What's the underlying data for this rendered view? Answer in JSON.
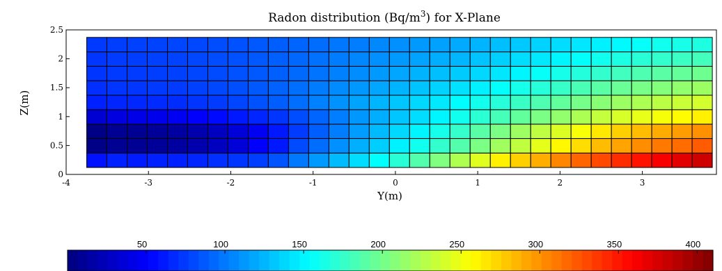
{
  "chart_data": {
    "type": "heatmap",
    "title": "Radon distribution (Bq/m3) for X-Plane",
    "title_parts": {
      "prefix": "Radon distribution (Bq/m",
      "superscript": "3",
      "suffix": ") for X-Plane"
    },
    "xlabel": "Y(m)",
    "ylabel": "Z(m)",
    "xlim": [
      -4,
      3.9
    ],
    "ylim": [
      0,
      2.5
    ],
    "xticks": [
      "-4",
      "-3",
      "-2",
      "-1",
      "0",
      "1",
      "2",
      "3"
    ],
    "yticks": [
      "0",
      "0.5",
      "1",
      "1.5",
      "2",
      "2.5"
    ],
    "x_edges": [
      -3.75,
      3.85
    ],
    "y_edges": [
      0.12,
      0.37,
      0.62,
      0.87,
      1.12,
      1.37,
      1.62,
      1.87,
      2.12,
      2.37
    ],
    "grid": false,
    "colormap": "jet",
    "colorbar": {
      "range": [
        0,
        410
      ],
      "ticks": [
        "50",
        "100",
        "150",
        "200",
        "250",
        "300",
        "350",
        "400"
      ],
      "tick_values": [
        50,
        100,
        150,
        200,
        250,
        300,
        350,
        400
      ]
    },
    "columns": 31,
    "values_by_row_bottom_to_top": [
      [
        58,
        64,
        62,
        64,
        64,
        66,
        70,
        72,
        76,
        85,
        100,
        113,
        127,
        140,
        154,
        170,
        187,
        205,
        224,
        244,
        262,
        275,
        289,
        305,
        318,
        329,
        341,
        351,
        361,
        370,
        378
      ],
      [
        3,
        8,
        8,
        10,
        13,
        18,
        26,
        36,
        50,
        61,
        81,
        95,
        109,
        122,
        134,
        148,
        160,
        174,
        187,
        203,
        218,
        231,
        246,
        259,
        270,
        283,
        293,
        302,
        310,
        315,
        322
      ],
      [
        3,
        8,
        8,
        10,
        13,
        18,
        26,
        36,
        46,
        61,
        75,
        89,
        102,
        114,
        126,
        138,
        150,
        162,
        175,
        189,
        203,
        217,
        230,
        242,
        254,
        265,
        275,
        283,
        290,
        296,
        301
      ],
      [
        33,
        39,
        42,
        44,
        46,
        50,
        55,
        61,
        66,
        72,
        82,
        92,
        102,
        112,
        121,
        131,
        140,
        150,
        160,
        171,
        182,
        193,
        203,
        213,
        223,
        232,
        240,
        247,
        253,
        258,
        262
      ],
      [
        64,
        66,
        67,
        68,
        69,
        72,
        75,
        79,
        84,
        89,
        96,
        103,
        110,
        117,
        124,
        131,
        138,
        145,
        153,
        161,
        169,
        177,
        185,
        193,
        201,
        209,
        216,
        223,
        229,
        234,
        238
      ],
      [
        70,
        72,
        73,
        74,
        75,
        77,
        80,
        83,
        87,
        91,
        96,
        101,
        107,
        112,
        118,
        124,
        130,
        136,
        142,
        148,
        155,
        162,
        169,
        176,
        183,
        190,
        196,
        202,
        207,
        212,
        216
      ],
      [
        72,
        74,
        75,
        76,
        77,
        79,
        81,
        84,
        87,
        90,
        94,
        98,
        103,
        108,
        113,
        118,
        123,
        128,
        133,
        138,
        144,
        150,
        156,
        162,
        168,
        174,
        180,
        185,
        190,
        194,
        198
      ],
      [
        73,
        75,
        76,
        77,
        78,
        80,
        82,
        84,
        87,
        90,
        93,
        97,
        101,
        105,
        109,
        113,
        117,
        121,
        125,
        130,
        135,
        140,
        145,
        150,
        155,
        160,
        165,
        170,
        174,
        178,
        181
      ],
      [
        74,
        76,
        77,
        78,
        79,
        80,
        82,
        84,
        87,
        89,
        92,
        95,
        99,
        102,
        106,
        109,
        113,
        116,
        120,
        124,
        128,
        132,
        136,
        140,
        144,
        148,
        152,
        156,
        160,
        163,
        166
      ]
    ]
  }
}
